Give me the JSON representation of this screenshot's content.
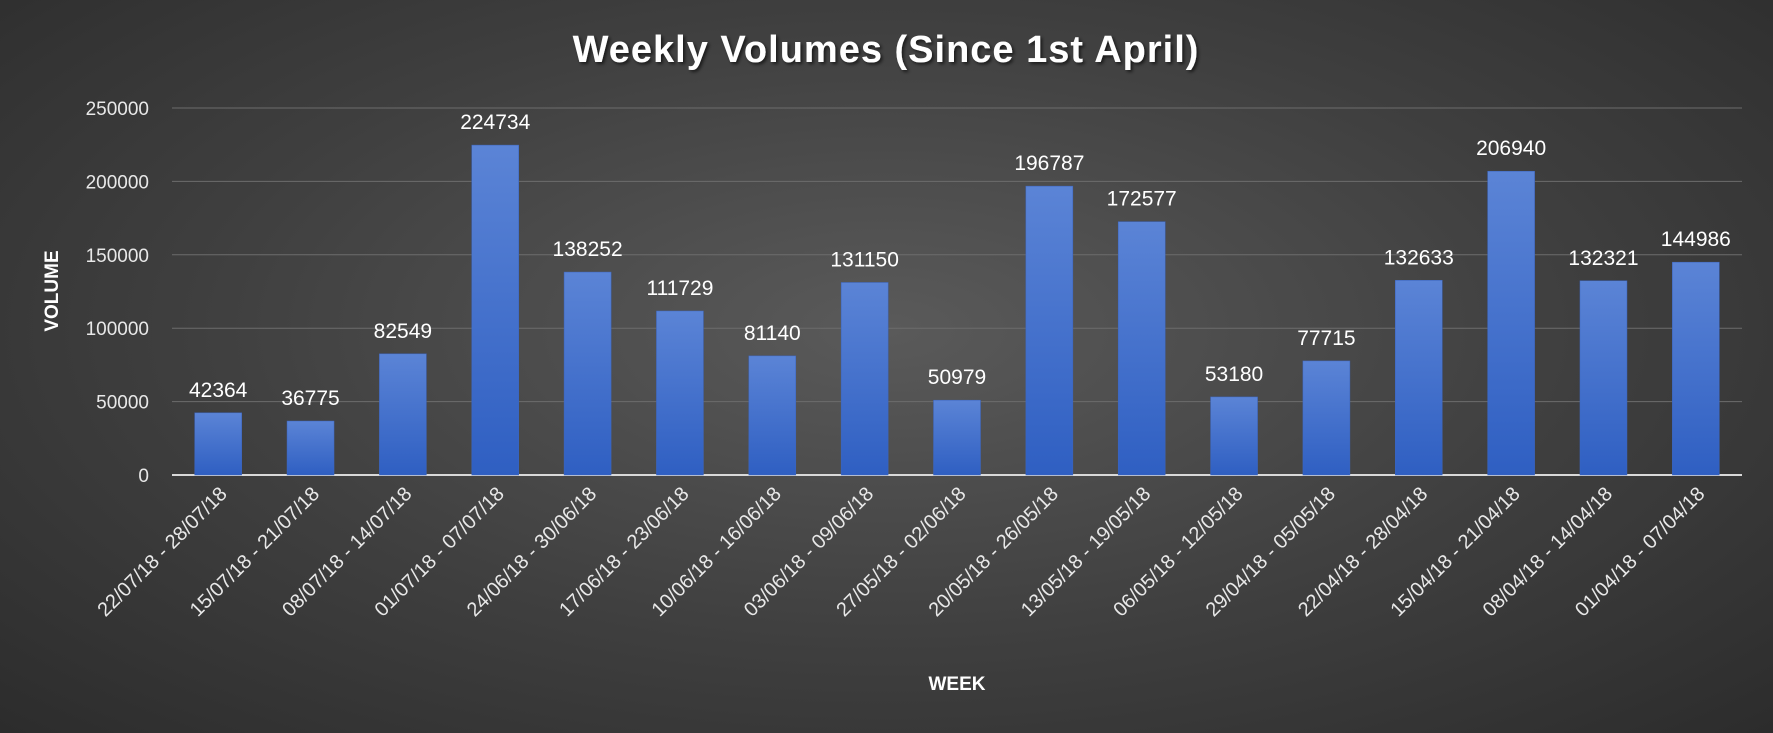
{
  "chart_data": {
    "type": "bar",
    "title": "Weekly Volumes (Since 1st April)",
    "xlabel": "WEEK",
    "ylabel": "VOLUME",
    "ylim": [
      0,
      250000
    ],
    "yticks": [
      0,
      50000,
      100000,
      150000,
      200000,
      250000
    ],
    "grid": true,
    "colors": {
      "bar_top": "#5b84d6",
      "bar_bottom": "#2f5fc2"
    },
    "categories": [
      "22/07/18 - 28/07/18",
      "15/07/18 - 21/07/18",
      "08/07/18 - 14/07/18",
      "01/07/18 - 07/07/18",
      "24/06/18 - 30/06/18",
      "17/06/18 - 23/06/18",
      "10/06/18 - 16/06/18",
      "03/06/18 - 09/06/18",
      "27/05/18 - 02/06/18",
      "20/05/18 - 26/05/18",
      "13/05/18 - 19/05/18",
      "06/05/18 - 12/05/18",
      "29/04/18 - 05/05/18",
      "22/04/18 - 28/04/18",
      "15/04/18 - 21/04/18",
      "08/04/18 - 14/04/18",
      "01/04/18 - 07/04/18"
    ],
    "values": [
      42364,
      36775,
      82549,
      224734,
      138252,
      111729,
      81140,
      131150,
      50979,
      196787,
      172577,
      53180,
      77715,
      132633,
      206940,
      132321,
      144986
    ]
  }
}
